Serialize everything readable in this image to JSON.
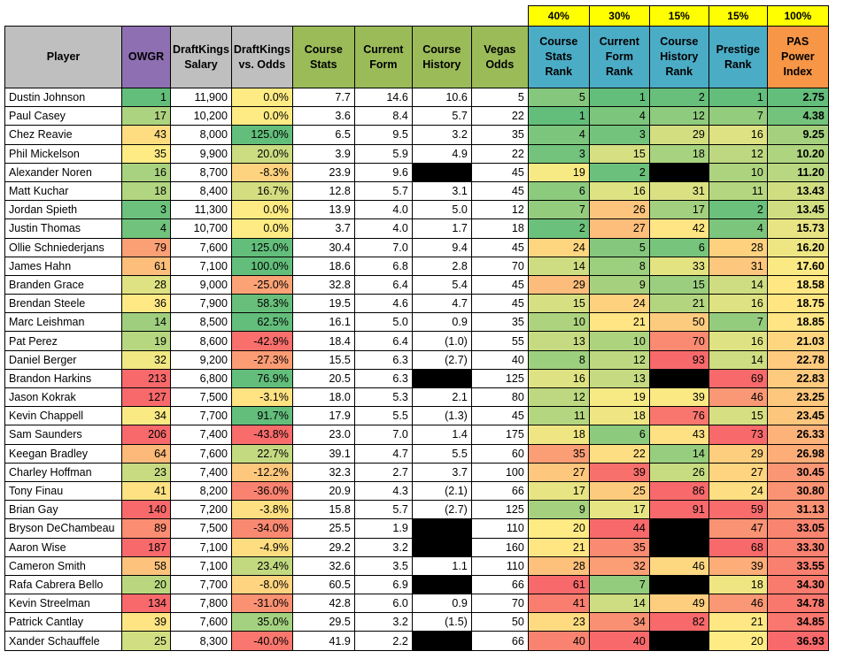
{
  "weights": [
    "40%",
    "30%",
    "15%",
    "15%",
    "100%"
  ],
  "headers": [
    "Player",
    "OWGR",
    "DraftKings Salary",
    "DraftKings vs. Odds",
    "Course Stats",
    "Current Form",
    "Course History",
    "Vegas Odds",
    "Course Stats Rank",
    "Current Form Rank",
    "Course History Rank",
    "Prestige Rank",
    "PAS Power Index"
  ],
  "colors": {
    "header_gray": "#bfbfbf",
    "header_purple": "#8e6fb1",
    "header_green": "#9bbb59",
    "header_blue": "#4bacc6",
    "header_orange": "#f79646",
    "weight_yellow": "#ffff00",
    "scale_green": "#63be7b",
    "scale_yellow": "#ffeb84",
    "scale_red": "#f8696b",
    "blank_cell": "#000000"
  },
  "rows": [
    [
      "Dustin Johnson",
      "1",
      "11,900",
      "0.0%",
      "7.7",
      "14.6",
      "10.6",
      "5",
      "5",
      "1",
      "2",
      "1",
      "2.75"
    ],
    [
      "Paul Casey",
      "17",
      "10,200",
      "0.0%",
      "3.6",
      "8.4",
      "5.7",
      "22",
      "1",
      "4",
      "12",
      "7",
      "4.38"
    ],
    [
      "Chez Reavie",
      "43",
      "8,000",
      "125.0%",
      "6.5",
      "9.5",
      "3.2",
      "35",
      "4",
      "3",
      "29",
      "16",
      "9.25"
    ],
    [
      "Phil Mickelson",
      "35",
      "9,900",
      "20.0%",
      "3.9",
      "5.9",
      "4.9",
      "22",
      "3",
      "15",
      "18",
      "12",
      "10.20"
    ],
    [
      "Alexander Noren",
      "16",
      "8,700",
      "-8.3%",
      "23.9",
      "9.6",
      "",
      "45",
      "19",
      "2",
      "",
      "10",
      "11.20"
    ],
    [
      "Matt Kuchar",
      "18",
      "8,400",
      "16.7%",
      "12.8",
      "5.7",
      "3.1",
      "45",
      "6",
      "16",
      "31",
      "11",
      "13.43"
    ],
    [
      "Jordan Spieth",
      "3",
      "11,300",
      "0.0%",
      "13.9",
      "4.0",
      "5.0",
      "12",
      "7",
      "26",
      "17",
      "2",
      "13.45"
    ],
    [
      "Justin Thomas",
      "4",
      "10,700",
      "0.0%",
      "3.7",
      "4.0",
      "1.7",
      "18",
      "2",
      "27",
      "42",
      "4",
      "15.73"
    ],
    [
      "Ollie Schniederjans",
      "79",
      "7,600",
      "125.0%",
      "30.4",
      "7.0",
      "9.4",
      "45",
      "24",
      "5",
      "6",
      "28",
      "16.20"
    ],
    [
      "James Hahn",
      "61",
      "7,100",
      "100.0%",
      "18.6",
      "6.8",
      "2.8",
      "70",
      "14",
      "8",
      "33",
      "31",
      "17.60"
    ],
    [
      "Branden Grace",
      "28",
      "9,000",
      "-25.0%",
      "32.8",
      "6.4",
      "5.4",
      "45",
      "29",
      "9",
      "15",
      "14",
      "18.58"
    ],
    [
      "Brendan Steele",
      "36",
      "7,900",
      "58.3%",
      "19.5",
      "4.6",
      "4.7",
      "45",
      "15",
      "24",
      "21",
      "16",
      "18.75"
    ],
    [
      "Marc Leishman",
      "14",
      "8,500",
      "62.5%",
      "16.1",
      "5.0",
      "0.9",
      "35",
      "10",
      "21",
      "50",
      "7",
      "18.85"
    ],
    [
      "Pat Perez",
      "19",
      "8,600",
      "-42.9%",
      "18.4",
      "6.4",
      "(1.0)",
      "55",
      "13",
      "10",
      "70",
      "16",
      "21.03"
    ],
    [
      "Daniel Berger",
      "32",
      "9,200",
      "-27.3%",
      "15.5",
      "6.3",
      "(2.7)",
      "40",
      "8",
      "12",
      "93",
      "14",
      "22.78"
    ],
    [
      "Brandon Harkins",
      "213",
      "6,800",
      "76.9%",
      "20.5",
      "6.3",
      "",
      "125",
      "16",
      "13",
      "",
      "69",
      "22.83"
    ],
    [
      "Jason Kokrak",
      "127",
      "7,500",
      "-3.1%",
      "18.0",
      "5.3",
      "2.1",
      "80",
      "12",
      "19",
      "39",
      "46",
      "23.25"
    ],
    [
      "Kevin Chappell",
      "34",
      "7,700",
      "91.7%",
      "17.9",
      "5.5",
      "(1.3)",
      "45",
      "11",
      "18",
      "76",
      "15",
      "23.45"
    ],
    [
      "Sam Saunders",
      "206",
      "7,400",
      "-43.8%",
      "23.0",
      "7.0",
      "1.4",
      "175",
      "18",
      "6",
      "43",
      "73",
      "26.33"
    ],
    [
      "Keegan Bradley",
      "64",
      "7,600",
      "22.7%",
      "39.1",
      "4.7",
      "5.5",
      "60",
      "35",
      "22",
      "14",
      "29",
      "26.98"
    ],
    [
      "Charley Hoffman",
      "23",
      "7,400",
      "-12.2%",
      "32.3",
      "2.7",
      "3.7",
      "100",
      "27",
      "39",
      "26",
      "27",
      "30.45"
    ],
    [
      "Tony Finau",
      "41",
      "8,200",
      "-36.0%",
      "20.9",
      "4.3",
      "(2.1)",
      "66",
      "17",
      "25",
      "86",
      "24",
      "30.80"
    ],
    [
      "Brian Gay",
      "140",
      "7,200",
      "-3.8%",
      "15.8",
      "5.7",
      "(2.7)",
      "125",
      "9",
      "17",
      "91",
      "59",
      "31.13"
    ],
    [
      "Bryson DeChambeau",
      "89",
      "7,500",
      "-34.0%",
      "25.5",
      "1.9",
      "",
      "110",
      "20",
      "44",
      "",
      "47",
      "33.05"
    ],
    [
      "Aaron Wise",
      "187",
      "7,100",
      "-4.9%",
      "29.2",
      "3.2",
      "",
      "160",
      "21",
      "35",
      "",
      "68",
      "33.30"
    ],
    [
      "Cameron Smith",
      "58",
      "7,100",
      "23.4%",
      "32.6",
      "3.5",
      "1.1",
      "110",
      "28",
      "32",
      "46",
      "39",
      "33.55"
    ],
    [
      "Rafa Cabrera Bello",
      "20",
      "7,700",
      "-8.0%",
      "60.5",
      "6.9",
      "",
      "66",
      "61",
      "7",
      "",
      "18",
      "34.30"
    ],
    [
      "Kevin Streelman",
      "134",
      "7,800",
      "-31.0%",
      "42.8",
      "6.0",
      "0.9",
      "70",
      "41",
      "14",
      "49",
      "46",
      "34.78"
    ],
    [
      "Patrick Cantlay",
      "39",
      "7,600",
      "35.0%",
      "29.5",
      "3.2",
      "(1.5)",
      "50",
      "23",
      "34",
      "82",
      "21",
      "34.85"
    ],
    [
      "Xander Schauffele",
      "25",
      "8,300",
      "-40.0%",
      "41.9",
      "2.2",
      "",
      "66",
      "40",
      "40",
      "",
      "20",
      "36.93"
    ]
  ]
}
